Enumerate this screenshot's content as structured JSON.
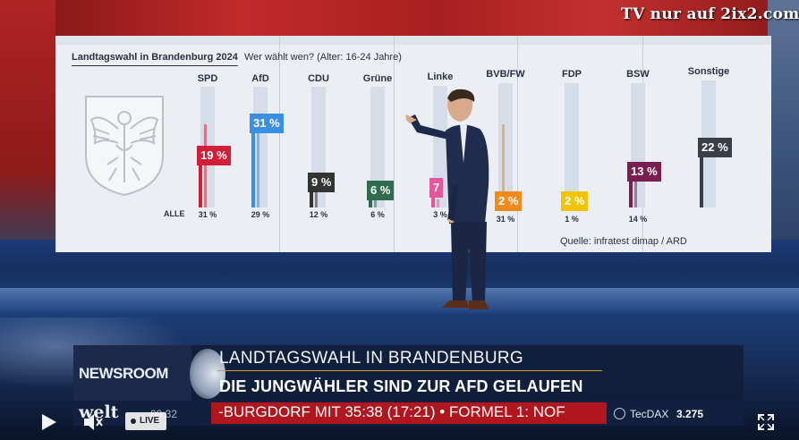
{
  "watermark": "TV nur auf 2ix2.com",
  "chart_data": {
    "type": "bar",
    "title": "Landtagswahl in Brandenburg 2024",
    "subtitle": "Wer wählt wen? (Alter: 16-24 Jahre)",
    "source": "Quelle: infratest dimap / ARD",
    "all_label": "ALLE",
    "categories": [
      "SPD",
      "AfD",
      "CDU",
      "Grüne",
      "Linke",
      "BVB/FW",
      "FDP",
      "BSW",
      "Sonstige"
    ],
    "series": [
      {
        "name": "",
        "values": [
          19,
          31,
          9,
          6,
          7,
          2,
          2,
          13,
          22
        ],
        "labels": [
          "19 %",
          "31 %",
          "9 %",
          "6 %",
          "7",
          "2 %",
          "2 %",
          "13 %",
          "22 %"
        ]
      },
      {
        "name": "ALLE",
        "values": [
          31,
          29,
          12,
          6,
          3,
          31,
          1,
          14,
          null
        ],
        "labels": [
          "31 %",
          "29 %",
          "12 %",
          "6 %",
          "3 %",
          "31 %",
          "1 %",
          "14 %",
          ""
        ]
      }
    ],
    "colors": [
      "#d01f36",
      "#3a8fe0",
      "#333333",
      "#2f6b4f",
      "#e2589c",
      "#f08a1c",
      "#f2c400",
      "#7a1e50",
      "#3a3f47"
    ],
    "ylim": [
      0,
      40
    ]
  },
  "lower_third": {
    "logo": "NEWSROOM",
    "headline": "LANDTAGSWAHL IN BRANDENBURG",
    "subheadline": "DIE JUNGWÄHLER SIND ZUR AFD GELAUFEN"
  },
  "ticker": {
    "brand": "welt",
    "time": "09:32",
    "text": "-BURGDORF MIT 35:38 (17:21) • FORMEL 1: NOF",
    "index_label": "TecDAX",
    "index_value": "3.275"
  },
  "player": {
    "live_label": "LIVE",
    "icons": {
      "play": "play-icon",
      "volume": "volume-muted-icon",
      "fullscreen": "fullscreen-icon"
    }
  }
}
